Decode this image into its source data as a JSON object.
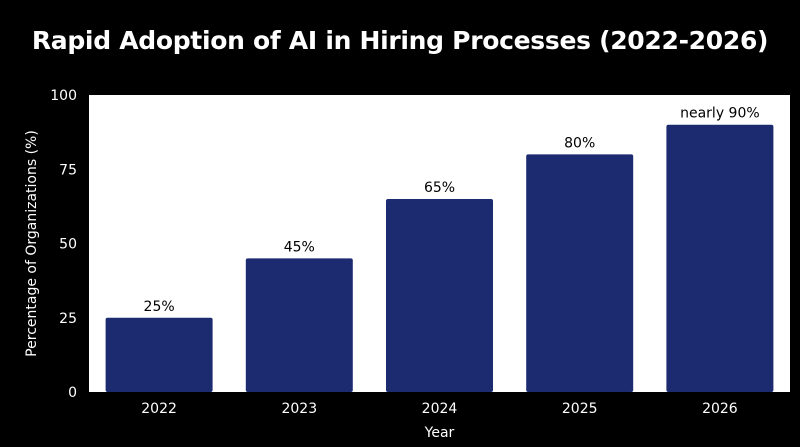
{
  "chart_data": {
    "type": "bar",
    "title": "Rapid Adoption of AI in Hiring Processes (2022-2026)",
    "xlabel": "Year",
    "ylabel": "Percentage of Organizations (%)",
    "categories": [
      "2022",
      "2023",
      "2024",
      "2025",
      "2026"
    ],
    "values": [
      25,
      45,
      65,
      80,
      90
    ],
    "data_labels": [
      "25%",
      "45%",
      "65%",
      "80%",
      "nearly 90%"
    ],
    "ylim": [
      0,
      100
    ],
    "yticks": [
      0,
      25,
      50,
      75,
      100
    ],
    "grid": false,
    "legend": "none",
    "colors": {
      "bar": "#1c2b6f",
      "plot_background": "#ffffff",
      "page_background": "#000000",
      "text": "#ffffff"
    }
  }
}
